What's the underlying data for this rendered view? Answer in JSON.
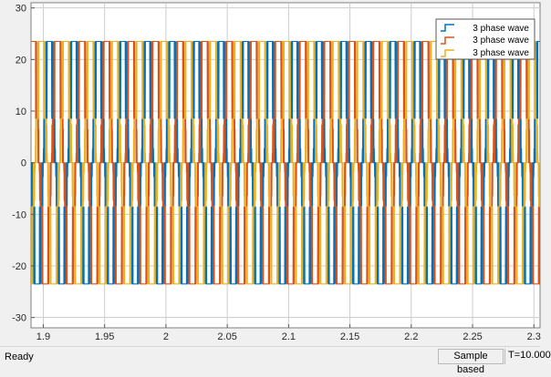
{
  "status": {
    "ready": "Ready",
    "mode": "Sample based",
    "time": "T=10.000"
  },
  "colors": {
    "phase_a": "#0072BD",
    "phase_b": "#D95319",
    "phase_c": "#EDB120",
    "grid": "#cccccc",
    "plot_bg": "#ffffff"
  },
  "chart_data": {
    "type": "line",
    "title": "",
    "xlabel": "",
    "ylabel": "",
    "xlim": [
      1.89,
      2.305
    ],
    "ylim": [
      -32,
      31
    ],
    "xticks": [
      1.9,
      1.95,
      2,
      2.05,
      2.1,
      2.15,
      2.2,
      2.25,
      2.3
    ],
    "xtick_labels": [
      "1.9",
      "1.95",
      "2",
      "2.05",
      "2.1",
      "2.15",
      "2.2",
      "2.25",
      "2.3"
    ],
    "yticks": [
      -30,
      -20,
      -10,
      0,
      10,
      20,
      30
    ],
    "ytick_labels": [
      "-30",
      "-20",
      "-10",
      "0",
      "10",
      "20",
      "30"
    ],
    "grid": true,
    "legend_position": "top-right",
    "signal": {
      "waveform": "PWM",
      "frequency_hz": 50,
      "peak": 23.5,
      "lower_level": 8.5
    },
    "series": [
      {
        "name": "3 phase wave",
        "phase_deg": 0,
        "color": "#0072BD"
      },
      {
        "name": "3 phase wave",
        "phase_deg": -120,
        "color": "#D95319"
      },
      {
        "name": "3 phase wave",
        "phase_deg": 120,
        "color": "#EDB120"
      }
    ]
  }
}
